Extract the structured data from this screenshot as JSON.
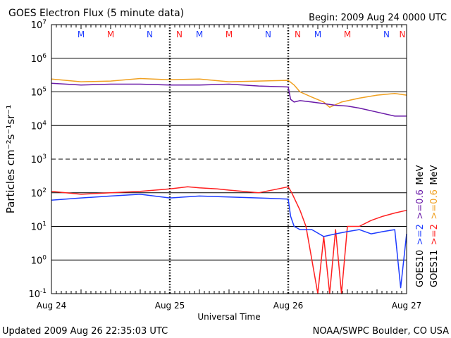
{
  "header": {
    "title": "GOES Electron Flux (5 minute data)",
    "begin": "Begin: 2009 Aug 24 0000 UTC"
  },
  "footer": {
    "updated": "Updated 2009 Aug 26 22:35:03 UTC",
    "source": "NOAA/SWPC Boulder, CO USA"
  },
  "chart_data": {
    "type": "line",
    "title": "GOES Electron Flux (5 minute data)",
    "xlabel": "Universal Time",
    "ylabel": "Particles cm⁻²s⁻¹sr⁻¹",
    "yscale": "log",
    "ylim": [
      0.1,
      10000000
    ],
    "xlim_days": [
      0,
      3
    ],
    "grid": true,
    "x_tick_labels": [
      "Aug 24",
      "Aug 25",
      "Aug 26",
      "Aug 27"
    ],
    "y_ticks": [
      {
        "base": "10",
        "exp": "7",
        "value": 10000000
      },
      {
        "base": "10",
        "exp": "6",
        "value": 1000000
      },
      {
        "base": "10",
        "exp": "5",
        "value": 100000
      },
      {
        "base": "10",
        "exp": "4",
        "value": 10000
      },
      {
        "base": "10",
        "exp": "3",
        "value": 1000
      },
      {
        "base": "10",
        "exp": "2",
        "value": 100
      },
      {
        "base": "10",
        "exp": "1",
        "value": 10
      },
      {
        "base": "10",
        "exp": "0",
        "value": 1
      },
      {
        "base": "10",
        "exp": "-1",
        "value": 0.1
      }
    ],
    "threshold_lines": [
      1000
    ],
    "midnight_noon_markers": [
      {
        "day": 0.25,
        "label": "M",
        "color": "#1e3cff"
      },
      {
        "day": 0.5,
        "label": "M",
        "color": "#ff2020"
      },
      {
        "day": 0.83,
        "label": "N",
        "color": "#1e3cff"
      },
      {
        "day": 1.08,
        "label": "N",
        "color": "#ff2020"
      },
      {
        "day": 1.25,
        "label": "M",
        "color": "#1e3cff"
      },
      {
        "day": 1.5,
        "label": "M",
        "color": "#ff2020"
      },
      {
        "day": 1.83,
        "label": "N",
        "color": "#1e3cff"
      },
      {
        "day": 2.08,
        "label": "N",
        "color": "#ff2020"
      },
      {
        "day": 2.25,
        "label": "M",
        "color": "#1e3cff"
      },
      {
        "day": 2.5,
        "label": "M",
        "color": "#ff2020"
      },
      {
        "day": 2.83,
        "label": "N",
        "color": "#1e3cff"
      },
      {
        "day": 3.08,
        "label": "N",
        "color": "#ff2020"
      }
    ],
    "legend": [
      {
        "satellite": "GOES10",
        "entries": [
          {
            "text": ">=2",
            "color": "#1e3cff"
          },
          {
            "text": ">=0.6",
            "color": "#6a1aa8"
          },
          {
            "text": "MeV",
            "color": "#000000"
          }
        ]
      },
      {
        "satellite": "GOES11",
        "entries": [
          {
            "text": ">=2",
            "color": "#ff2020"
          },
          {
            "text": ">=0.6",
            "color": "#f0a020"
          },
          {
            "text": "MeV",
            "color": "#000000"
          }
        ]
      }
    ],
    "series": [
      {
        "name": "GOES11 >=0.6 MeV",
        "color": "#f0a020",
        "x": [
          0,
          0.25,
          0.5,
          0.75,
          1.0,
          1.25,
          1.5,
          1.75,
          2.0,
          2.05,
          2.1,
          2.2,
          2.3,
          2.35,
          2.45,
          2.6,
          2.75,
          2.9,
          3.0
        ],
        "y": [
          240000,
          200000,
          210000,
          250000,
          230000,
          240000,
          200000,
          210000,
          220000,
          160000,
          100000,
          70000,
          50000,
          35000,
          50000,
          65000,
          80000,
          90000,
          80000
        ]
      },
      {
        "name": "GOES10 >=0.6 MeV",
        "color": "#6a1aa8",
        "x": [
          0,
          0.25,
          0.5,
          0.75,
          1.0,
          1.25,
          1.5,
          1.75,
          2.0,
          2.02,
          2.05,
          2.1,
          2.2,
          2.3,
          2.4,
          2.5,
          2.6,
          2.75,
          2.9,
          3.0
        ],
        "y": [
          180000,
          160000,
          170000,
          170000,
          160000,
          160000,
          170000,
          150000,
          140000,
          60000,
          50000,
          55000,
          50000,
          45000,
          40000,
          38000,
          33000,
          25000,
          19000,
          19000
        ]
      },
      {
        "name": "GOES11 >=2 MeV",
        "color": "#ff2020",
        "x": [
          0,
          0.25,
          0.5,
          0.75,
          1.0,
          1.15,
          1.25,
          1.4,
          1.5,
          1.75,
          2.0,
          2.03,
          2.1,
          2.15,
          2.2,
          2.25,
          2.3,
          2.35,
          2.4,
          2.45,
          2.5,
          2.6,
          2.7,
          2.8,
          2.9,
          3.0
        ],
        "y": [
          110,
          90,
          100,
          110,
          130,
          150,
          140,
          130,
          120,
          100,
          150,
          100,
          30,
          10,
          1,
          0.1,
          5,
          0.1,
          8,
          0.1,
          10,
          10,
          15,
          20,
          25,
          30
        ]
      },
      {
        "name": "GOES10 >=2 MeV",
        "color": "#1e3cff",
        "x": [
          0,
          0.25,
          0.5,
          0.75,
          1.0,
          1.25,
          1.5,
          1.75,
          2.0,
          2.02,
          2.05,
          2.1,
          2.2,
          2.3,
          2.4,
          2.5,
          2.6,
          2.7,
          2.8,
          2.9,
          2.95,
          3.0
        ],
        "y": [
          60,
          70,
          80,
          90,
          70,
          80,
          75,
          70,
          65,
          20,
          10,
          8,
          8,
          5,
          6,
          7,
          8,
          6,
          7,
          8,
          0.15,
          6
        ]
      }
    ]
  }
}
